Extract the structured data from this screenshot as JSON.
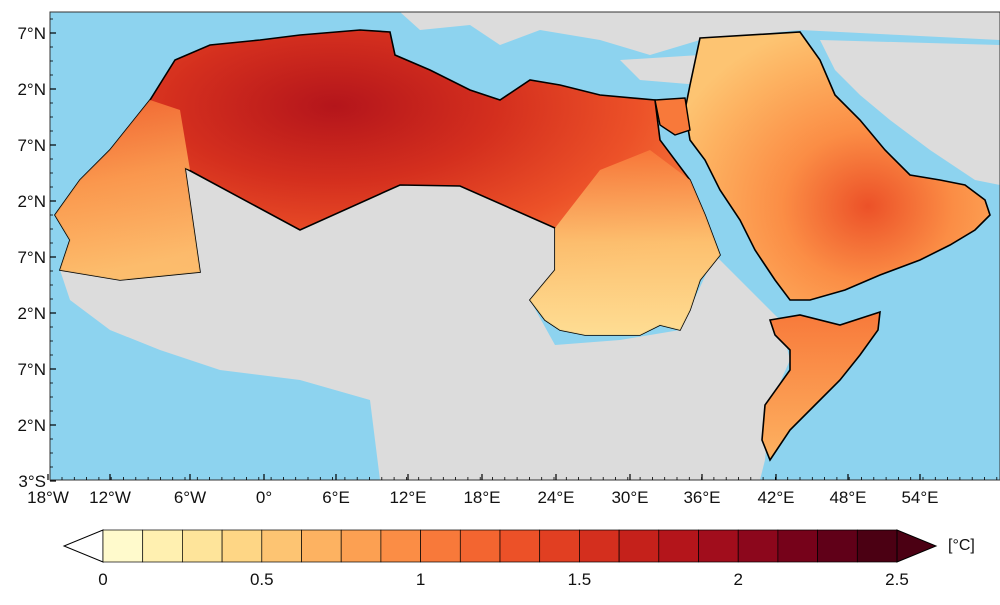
{
  "map": {
    "lat_labels": [
      "7°N",
      "2°N",
      "7°N",
      "2°N",
      "7°N",
      "2°N",
      "7°N",
      "2°N",
      "3°S"
    ],
    "lon_labels": [
      "18°W",
      "12°W",
      "6°W",
      "0°",
      "6°E",
      "12°E",
      "18°E",
      "24°E",
      "30°E",
      "36°E",
      "42°E",
      "48°E",
      "54°E"
    ],
    "colors": {
      "ocean": "#8dd3ef",
      "land_outside": "#dcdcdc",
      "border": "#000000"
    }
  },
  "colorbar": {
    "ticks": [
      "0",
      "0.5",
      "1",
      "1.5",
      "2",
      "2.5"
    ],
    "unit": "[°C]",
    "range": [
      0,
      2.5
    ],
    "step": 0.125,
    "colors": [
      "#fffacc",
      "#fff0b0",
      "#fee49a",
      "#fed685",
      "#fdc472",
      "#fdb261",
      "#fca052",
      "#fb8d45",
      "#f8793a",
      "#f36530",
      "#ec5128",
      "#e13f22",
      "#d42f1e",
      "#c5211b",
      "#b4151b",
      "#a10d1c",
      "#8c071c",
      "#76021a",
      "#600018",
      "#4b0013"
    ],
    "over_color": "#4b0013"
  }
}
